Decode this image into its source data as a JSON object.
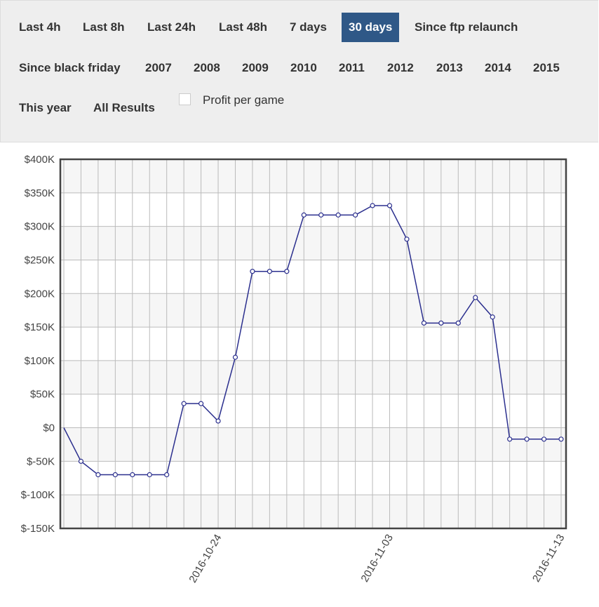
{
  "filters": {
    "buttons": [
      {
        "label": "Last 4h",
        "active": false
      },
      {
        "label": "Last 8h",
        "active": false
      },
      {
        "label": "Last 24h",
        "active": false
      },
      {
        "label": "Last 48h",
        "active": false
      },
      {
        "label": "7 days",
        "active": false
      },
      {
        "label": "30 days",
        "active": true
      },
      {
        "label": "Since ftp relaunch",
        "active": false
      },
      {
        "label": "Since black friday",
        "active": false
      },
      {
        "label": "2007",
        "active": false
      },
      {
        "label": "2008",
        "active": false
      },
      {
        "label": "2009",
        "active": false
      },
      {
        "label": "2010",
        "active": false
      },
      {
        "label": "2011",
        "active": false
      },
      {
        "label": "2012",
        "active": false
      },
      {
        "label": "2013",
        "active": false
      },
      {
        "label": "2014",
        "active": false
      },
      {
        "label": "2015",
        "active": false
      },
      {
        "label": "This year",
        "active": false
      },
      {
        "label": "All Results",
        "active": false
      }
    ],
    "profit_per_game": {
      "label": "Profit per game",
      "checked": false
    }
  },
  "chart_data": {
    "type": "line",
    "title": "",
    "xlabel": "",
    "ylabel": "",
    "x": [
      "2016-10-15",
      "2016-10-16",
      "2016-10-17",
      "2016-10-18",
      "2016-10-19",
      "2016-10-20",
      "2016-10-21",
      "2016-10-22",
      "2016-10-23",
      "2016-10-24",
      "2016-10-25",
      "2016-10-26",
      "2016-10-27",
      "2016-10-28",
      "2016-10-29",
      "2016-10-30",
      "2016-10-31",
      "2016-11-01",
      "2016-11-02",
      "2016-11-03",
      "2016-11-04",
      "2016-11-05",
      "2016-11-06",
      "2016-11-07",
      "2016-11-08",
      "2016-11-09",
      "2016-11-10",
      "2016-11-11",
      "2016-11-12",
      "2016-11-13"
    ],
    "series": [
      {
        "values": [
          0,
          -50000,
          -70000,
          -70000,
          -70000,
          -70000,
          -70000,
          36000,
          36000,
          10000,
          105000,
          233000,
          233000,
          233000,
          317000,
          317000,
          317000,
          317000,
          331000,
          331000,
          281000,
          156000,
          156000,
          156000,
          194000,
          165000,
          -17000,
          -17000,
          -17000,
          -17000
        ]
      }
    ],
    "ylim": [
      -150000,
      400000
    ],
    "yticks": [
      {
        "value": 400000,
        "label": "$400K"
      },
      {
        "value": 350000,
        "label": "$350K"
      },
      {
        "value": 300000,
        "label": "$300K"
      },
      {
        "value": 250000,
        "label": "$250K"
      },
      {
        "value": 200000,
        "label": "$200K"
      },
      {
        "value": 150000,
        "label": "$150K"
      },
      {
        "value": 100000,
        "label": "$100K"
      },
      {
        "value": 50000,
        "label": "$50K"
      },
      {
        "value": 0,
        "label": "$0"
      },
      {
        "value": -50000,
        "label": "$-50K"
      },
      {
        "value": -100000,
        "label": "$-100K"
      },
      {
        "value": -150000,
        "label": "$-150K"
      }
    ],
    "xticks": [
      "2016-10-24",
      "2016-11-03",
      "2016-11-13"
    ],
    "grid": true,
    "colors": {
      "line": "#2b2f8e",
      "point_fill": "#ffffff",
      "band": "#f6f6f6",
      "grid": "#bbbbbb",
      "frame": "#444444"
    }
  }
}
